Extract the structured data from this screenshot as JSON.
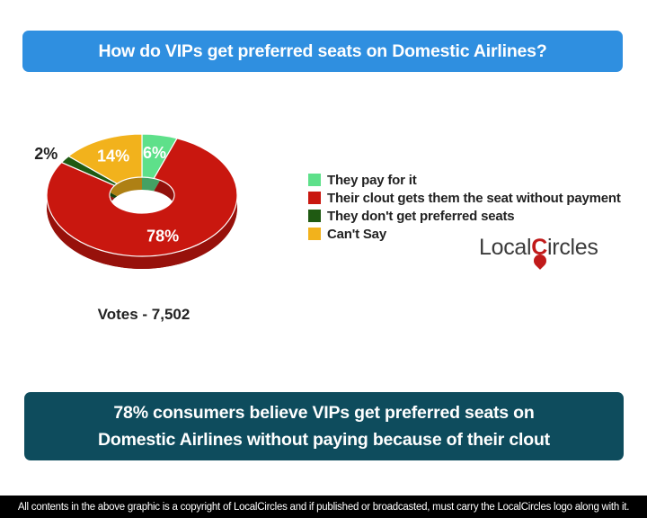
{
  "header": {
    "title": "How do VIPs get preferred seats on Domestic Airlines?"
  },
  "chart_data": {
    "type": "pie",
    "categories": [
      "They pay for it",
      "Their clout gets them the seat without payment",
      "They don't get preferred seats",
      "Can't Say"
    ],
    "values": [
      6,
      78,
      2,
      14
    ],
    "data_labels": [
      "6%",
      "78%",
      "2%",
      "14%"
    ],
    "colors": [
      "#5ee08a",
      "#c9170f",
      "#1f5a12",
      "#f2b21c"
    ],
    "legend_position": "right"
  },
  "votes_label": "Votes - 7,502",
  "logo": {
    "text_pre": "Local",
    "text_c": "C",
    "text_post": "ircles"
  },
  "summary": {
    "line1": "78% consumers believe VIPs get preferred seats on",
    "line2": "Domestic Airlines without paying because of their clout"
  },
  "footer": {
    "text": "All contents in the above graphic is a copyright of LocalCircles and if published or broadcasted, must carry the LocalCircles logo along with it."
  }
}
